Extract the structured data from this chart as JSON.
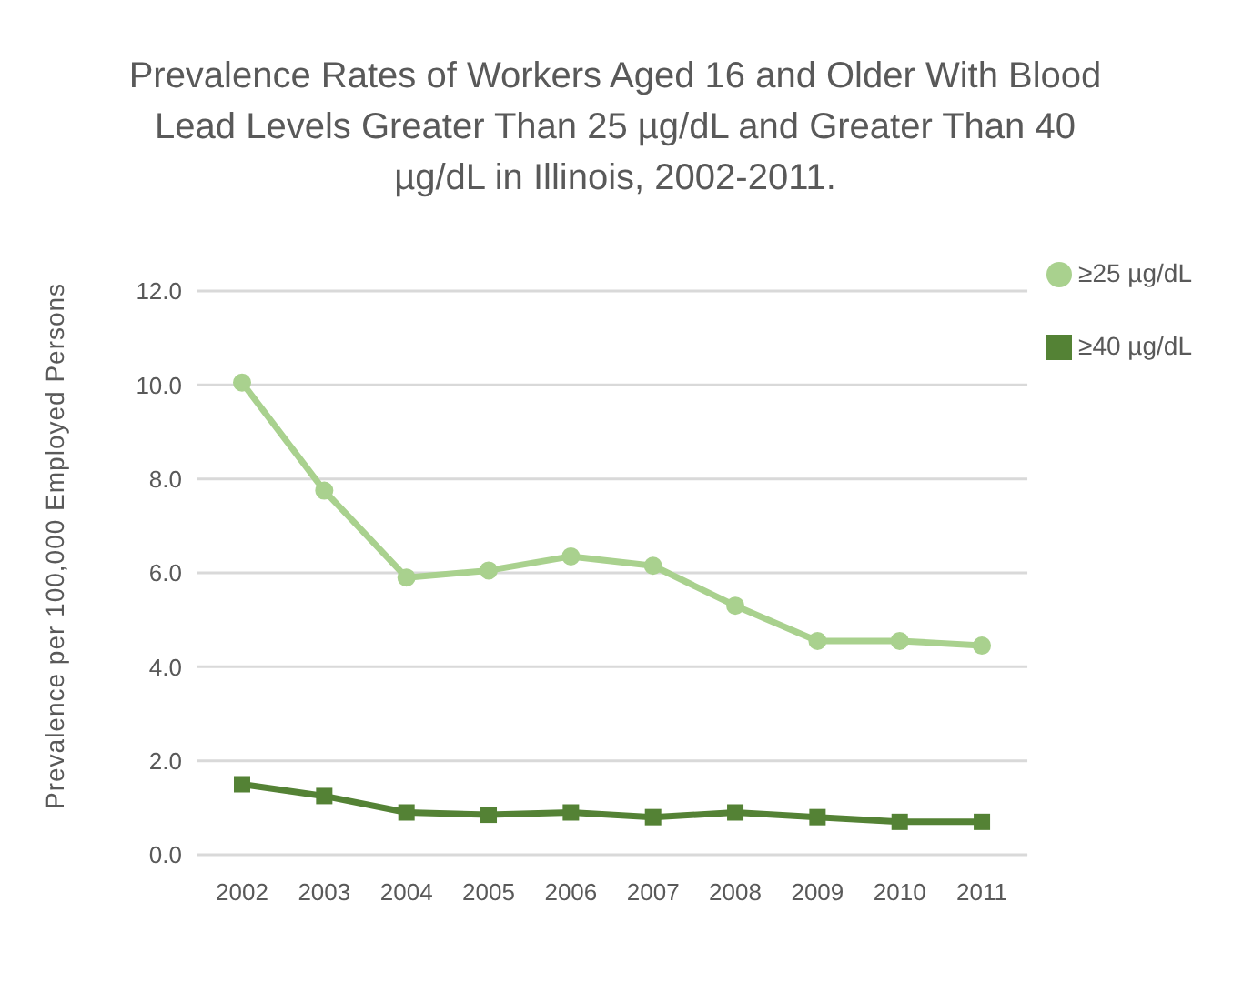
{
  "chart_data": {
    "type": "line",
    "title": "Prevalence Rates of Workers  Aged 16 and Older With Blood Lead Levels Greater Than 25 µg/dL and Greater Than 40 µg/dL in Illinois, 2002-2011.",
    "ylabel": "Prevalence per 100,000 Employed Persons",
    "categories": [
      "2002",
      "2003",
      "2004",
      "2005",
      "2006",
      "2007",
      "2008",
      "2009",
      "2010",
      "2011"
    ],
    "series": [
      {
        "name": "≥25 µg/dL",
        "color": "#a9d18e",
        "marker": "circle",
        "values": [
          10.05,
          7.75,
          5.9,
          6.05,
          6.35,
          6.15,
          5.3,
          4.55,
          4.55,
          4.45
        ]
      },
      {
        "name": "≥40 µg/dL",
        "color": "#548235",
        "marker": "square",
        "values": [
          1.5,
          1.25,
          0.9,
          0.85,
          0.9,
          0.8,
          0.9,
          0.8,
          0.7,
          0.7
        ]
      }
    ],
    "ylim": [
      0,
      12
    ],
    "yticks": [
      {
        "value": 0,
        "label": "0.0"
      },
      {
        "value": 2,
        "label": "2.0"
      },
      {
        "value": 4,
        "label": "4.0"
      },
      {
        "value": 6,
        "label": "6.0"
      },
      {
        "value": 8,
        "label": "8.0"
      },
      {
        "value": 10,
        "label": "10.0"
      },
      {
        "value": 12,
        "label": "12.0"
      }
    ],
    "grid": "y",
    "legend": "top right",
    "line_style": "solid"
  }
}
